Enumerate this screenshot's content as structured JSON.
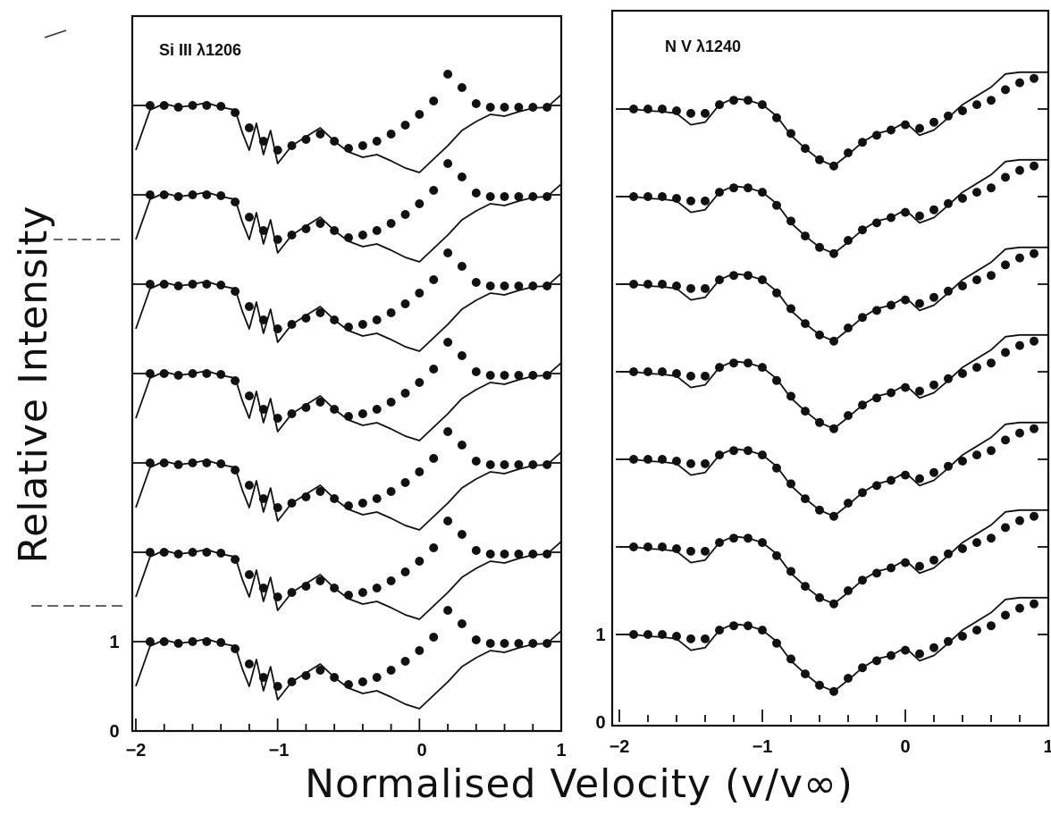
{
  "axis": {
    "ylabel": "Relative Intensity",
    "xlabel": "Normalised Velocity (v/v∞)"
  },
  "chart_data": [
    {
      "type": "line",
      "title": "Si III λ1206",
      "xlim": [
        -2,
        1
      ],
      "x_ticks": [
        -2,
        -1,
        0,
        1
      ],
      "y_ticks": [
        0,
        1
      ],
      "n_spectra": 7,
      "vertical_offset_step": 1,
      "series": [
        {
          "style": "solid-line",
          "x": [
            -2.0,
            -1.9,
            -1.8,
            -1.7,
            -1.6,
            -1.5,
            -1.4,
            -1.3,
            -1.25,
            -1.2,
            -1.15,
            -1.1,
            -1.05,
            -1.0,
            -0.9,
            -0.8,
            -0.7,
            -0.6,
            -0.5,
            -0.4,
            -0.3,
            -0.2,
            -0.1,
            0.0,
            0.1,
            0.2,
            0.3,
            0.4,
            0.5,
            0.6,
            0.7,
            0.8,
            0.9,
            1.0
          ],
          "y": [
            0.5,
            0.95,
            1.02,
            0.98,
            1.0,
            1.03,
            0.98,
            0.95,
            0.7,
            0.5,
            0.8,
            0.45,
            0.72,
            0.35,
            0.55,
            0.65,
            0.75,
            0.6,
            0.48,
            0.42,
            0.45,
            0.38,
            0.3,
            0.25,
            0.4,
            0.55,
            0.72,
            0.82,
            0.9,
            0.88,
            0.93,
            0.97,
            0.98,
            1.12
          ]
        },
        {
          "style": "filled-circles",
          "x": [
            -1.9,
            -1.8,
            -1.7,
            -1.6,
            -1.5,
            -1.4,
            -1.3,
            -1.2,
            -1.1,
            -1.0,
            -0.9,
            -0.8,
            -0.7,
            -0.6,
            -0.5,
            -0.4,
            -0.3,
            -0.2,
            -0.1,
            0.0,
            0.1,
            0.2,
            0.3,
            0.4,
            0.5,
            0.6,
            0.7,
            0.8,
            0.9
          ],
          "y": [
            1.0,
            1.0,
            0.98,
            1.0,
            1.0,
            0.99,
            0.92,
            0.75,
            0.6,
            0.5,
            0.55,
            0.62,
            0.68,
            0.6,
            0.52,
            0.55,
            0.6,
            0.68,
            0.78,
            0.9,
            1.05,
            1.35,
            1.2,
            1.02,
            0.98,
            0.98,
            0.98,
            0.98,
            0.98
          ]
        }
      ]
    },
    {
      "type": "line",
      "title": "N V λ1240",
      "xlim": [
        -2,
        1
      ],
      "x_ticks": [
        -2,
        -1,
        0,
        1
      ],
      "y_ticks": [
        0,
        1
      ],
      "n_spectra": 7,
      "vertical_offset_step": 1,
      "series": [
        {
          "style": "solid-line",
          "x": [
            -2.0,
            -1.9,
            -1.8,
            -1.7,
            -1.6,
            -1.5,
            -1.4,
            -1.3,
            -1.2,
            -1.1,
            -1.0,
            -0.9,
            -0.8,
            -0.7,
            -0.6,
            -0.5,
            -0.4,
            -0.3,
            -0.2,
            -0.1,
            0.0,
            0.1,
            0.2,
            0.3,
            0.4,
            0.5,
            0.6,
            0.7,
            0.8,
            0.9,
            1.0
          ],
          "y": [
            1.0,
            1.0,
            0.98,
            0.97,
            0.95,
            0.82,
            0.85,
            1.05,
            1.12,
            1.1,
            1.05,
            0.92,
            0.7,
            0.55,
            0.42,
            0.35,
            0.48,
            0.62,
            0.72,
            0.76,
            0.85,
            0.7,
            0.76,
            0.9,
            1.05,
            1.15,
            1.25,
            1.4,
            1.55,
            1.5,
            1.45
          ]
        },
        {
          "style": "filled-circles",
          "x": [
            -1.9,
            -1.8,
            -1.7,
            -1.6,
            -1.5,
            -1.4,
            -1.3,
            -1.2,
            -1.1,
            -1.0,
            -0.9,
            -0.8,
            -0.7,
            -0.6,
            -0.5,
            -0.4,
            -0.3,
            -0.2,
            -0.1,
            0.0,
            0.1,
            0.2,
            0.3,
            0.4,
            0.5,
            0.6,
            0.7,
            0.8,
            0.9
          ],
          "y": [
            1.0,
            1.0,
            1.0,
            0.98,
            0.95,
            0.95,
            1.05,
            1.1,
            1.1,
            1.05,
            0.9,
            0.72,
            0.55,
            0.42,
            0.35,
            0.5,
            0.62,
            0.7,
            0.76,
            0.82,
            0.78,
            0.85,
            0.92,
            0.98,
            1.05,
            1.1,
            1.22,
            1.3,
            1.35
          ]
        }
      ]
    }
  ]
}
